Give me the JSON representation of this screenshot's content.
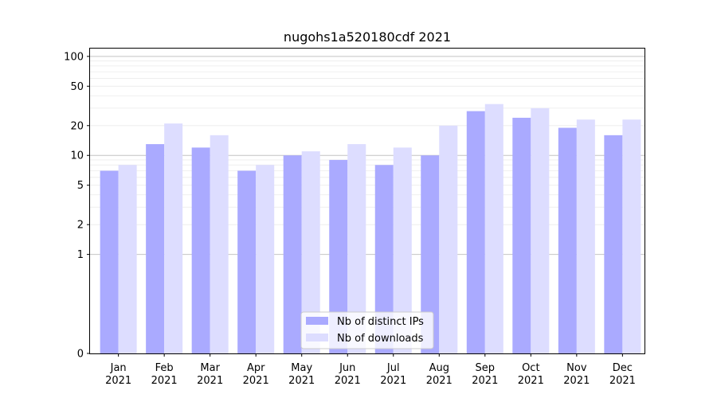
{
  "chart_data": {
    "type": "bar",
    "title": "nugohs1a520180cdf 2021",
    "xlabel": "",
    "ylabel": "",
    "yscale": "symlog",
    "ylim": [
      0,
      120
    ],
    "yticks": [
      0,
      1,
      2,
      5,
      10,
      20,
      50,
      100
    ],
    "ytick_labels": [
      "0",
      "1",
      "2",
      "5",
      "10",
      "20",
      "50",
      "100"
    ],
    "categories": [
      {
        "month": "Jan",
        "year": "2021"
      },
      {
        "month": "Feb",
        "year": "2021"
      },
      {
        "month": "Mar",
        "year": "2021"
      },
      {
        "month": "Apr",
        "year": "2021"
      },
      {
        "month": "May",
        "year": "2021"
      },
      {
        "month": "Jun",
        "year": "2021"
      },
      {
        "month": "Jul",
        "year": "2021"
      },
      {
        "month": "Aug",
        "year": "2021"
      },
      {
        "month": "Sep",
        "year": "2021"
      },
      {
        "month": "Oct",
        "year": "2021"
      },
      {
        "month": "Nov",
        "year": "2021"
      },
      {
        "month": "Dec",
        "year": "2021"
      }
    ],
    "series": [
      {
        "name": "Nb of distinct IPs",
        "color": "#aaaaff",
        "values": [
          7,
          13,
          12,
          7,
          10,
          9,
          8,
          10,
          28,
          24,
          19,
          16
        ]
      },
      {
        "name": "Nb of downloads",
        "color": "#ddddff",
        "values": [
          8,
          21,
          16,
          8,
          11,
          13,
          12,
          20,
          33,
          30,
          23,
          23
        ]
      }
    ],
    "grid": true,
    "legend_position": "bottom-center"
  }
}
